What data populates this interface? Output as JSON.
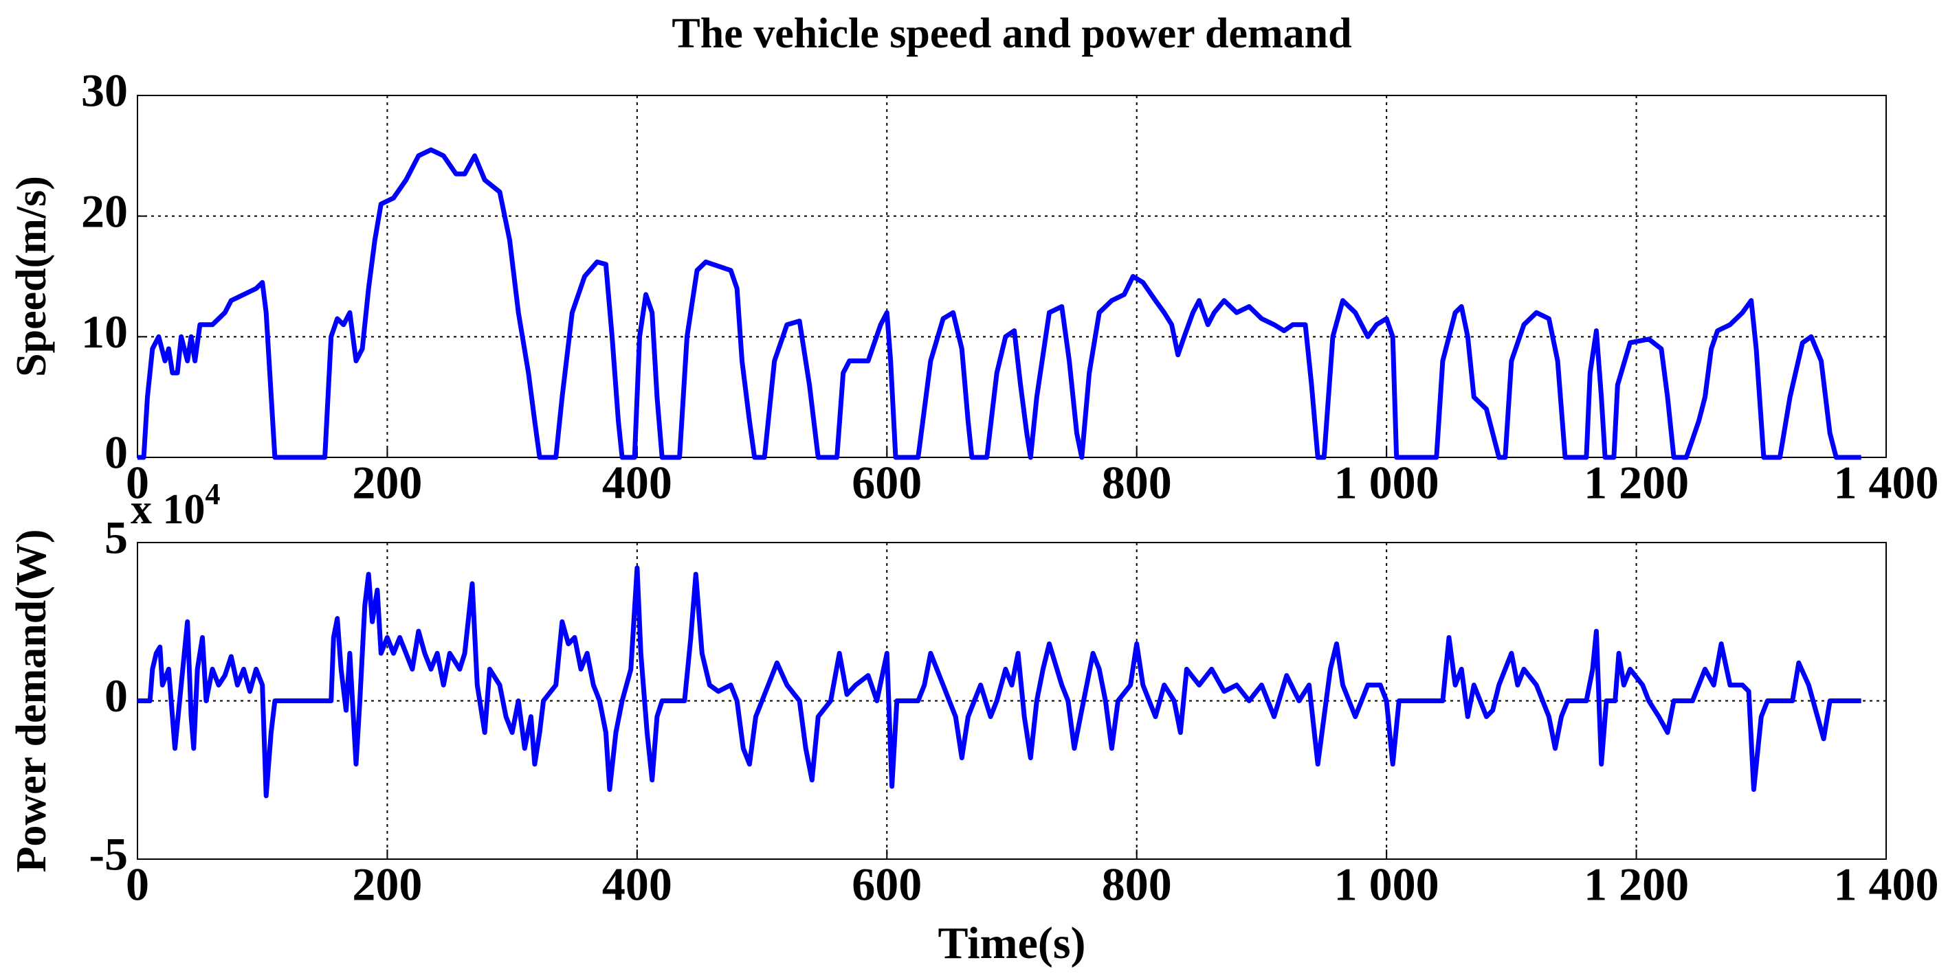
{
  "chart_data": [
    {
      "type": "line",
      "title": "The vehicle speed and power demand",
      "ylabel": "Speed(m/s)",
      "xlim": [
        0,
        1400
      ],
      "xticks": [
        0,
        200,
        400,
        600,
        800,
        {
          "value": 1000,
          "label": "1 000"
        },
        {
          "value": 1200,
          "label": "1 200"
        },
        {
          "value": 1400,
          "label": "1 400"
        }
      ],
      "ylim": [
        0,
        30
      ],
      "yticks": [
        0,
        10,
        20,
        30
      ],
      "grid": true,
      "x": [
        0,
        5,
        8,
        12,
        17,
        22,
        25,
        28,
        32,
        35,
        40,
        43,
        46,
        50,
        60,
        70,
        75,
        85,
        95,
        100,
        103,
        110,
        150,
        155,
        160,
        165,
        170,
        175,
        180,
        185,
        190,
        195,
        205,
        215,
        225,
        235,
        245,
        255,
        262,
        270,
        278,
        290,
        298,
        305,
        313,
        318,
        322,
        335,
        340,
        348,
        358,
        368,
        375,
        380,
        385,
        388,
        398,
        402,
        407,
        412,
        416,
        420,
        434,
        440,
        448,
        455,
        475,
        480,
        484,
        490,
        494,
        502,
        510,
        520,
        530,
        538,
        545,
        560,
        565,
        570,
        585,
        590,
        595,
        600,
        603,
        607,
        625,
        635,
        645,
        653,
        660,
        665,
        668,
        680,
        688,
        695,
        702,
        707,
        712,
        715,
        720,
        730,
        740,
        746,
        752,
        756,
        762,
        770,
        780,
        790,
        797,
        805,
        815,
        822,
        828,
        833,
        838,
        845,
        850,
        857,
        862,
        870,
        880,
        890,
        900,
        910,
        918,
        925,
        935,
        940,
        945,
        950,
        957,
        965,
        975,
        985,
        992,
        1000,
        1005,
        1008,
        1040,
        1045,
        1055,
        1060,
        1065,
        1070,
        1080,
        1090,
        1095,
        1100,
        1110,
        1120,
        1130,
        1137,
        1143,
        1160,
        1163,
        1168,
        1172,
        1175,
        1182,
        1185,
        1195,
        1210,
        1220,
        1225,
        1230,
        1240,
        1250,
        1255,
        1260,
        1265,
        1275,
        1285,
        1292,
        1296,
        1302,
        1315,
        1323,
        1333,
        1340,
        1348,
        1355,
        1360,
        1380
      ],
      "series": [
        {
          "color": "#0000ff",
          "values": [
            0,
            0,
            5,
            9,
            10,
            8,
            9,
            7,
            7,
            10,
            8,
            10,
            8,
            11,
            11,
            12,
            13,
            13.5,
            14,
            14.5,
            12,
            0,
            0,
            10,
            11.5,
            11,
            12,
            8,
            9,
            14,
            18,
            21,
            21.5,
            23,
            25,
            25.5,
            25,
            23.5,
            23.5,
            25,
            23,
            22,
            18,
            12,
            7,
            3,
            0,
            0,
            5,
            12,
            15,
            16.2,
            16,
            10,
            3,
            0,
            0,
            10,
            13.5,
            12,
            5,
            0,
            0,
            10,
            15.5,
            16.2,
            15.5,
            14,
            8,
            3,
            0,
            0,
            8,
            11,
            11.3,
            6,
            0,
            0,
            7,
            8,
            8,
            9.5,
            11,
            12,
            8,
            0,
            0,
            8,
            11.5,
            12,
            9,
            3,
            0,
            0,
            7,
            10,
            10.5,
            6,
            2,
            0,
            5,
            12,
            12.5,
            8,
            2,
            0,
            7,
            12,
            13,
            13.5,
            15,
            14.5,
            13,
            12,
            11,
            8.5,
            10,
            12,
            13,
            11,
            12,
            13,
            12,
            12.5,
            11.5,
            11,
            10.5,
            11,
            11,
            6,
            0,
            0,
            10,
            13,
            12,
            10,
            11,
            11.5,
            10,
            0,
            0,
            8,
            12,
            12.5,
            10,
            5,
            4,
            0,
            0,
            8,
            11,
            12,
            11.5,
            8,
            0,
            0,
            7,
            10.5,
            5,
            0,
            0,
            6,
            9.5,
            9.8,
            9,
            5,
            0,
            0,
            3,
            5,
            9,
            10.5,
            11,
            12,
            13,
            9,
            0,
            0,
            5,
            9.5,
            10,
            8,
            2,
            0,
            0
          ]
        }
      ]
    },
    {
      "type": "line",
      "ylabel": "Power demand(W)",
      "xlabel": "Time(s)",
      "y_offset_text": "x 10",
      "y_offset_exponent": "4",
      "xlim": [
        0,
        1400
      ],
      "xticks": [
        0,
        200,
        400,
        600,
        800,
        {
          "value": 1000,
          "label": "1 000"
        },
        {
          "value": 1200,
          "label": "1 200"
        },
        {
          "value": 1400,
          "label": "1 400"
        }
      ],
      "ylim": [
        -50000,
        50000
      ],
      "yticks": [
        {
          "value": -50000,
          "label": "-5"
        },
        0,
        {
          "value": 50000,
          "label": "5"
        }
      ],
      "grid": true,
      "x": [
        0,
        10,
        12,
        15,
        18,
        20,
        25,
        30,
        35,
        40,
        43,
        45,
        48,
        52,
        55,
        60,
        65,
        70,
        75,
        80,
        85,
        90,
        95,
        100,
        103,
        107,
        110,
        155,
        157,
        160,
        163,
        167,
        170,
        175,
        178,
        182,
        185,
        188,
        192,
        195,
        200,
        205,
        210,
        215,
        220,
        225,
        230,
        235,
        240,
        245,
        250,
        258,
        262,
        268,
        272,
        278,
        282,
        290,
        295,
        300,
        305,
        310,
        315,
        318,
        322,
        325,
        335,
        340,
        345,
        350,
        355,
        360,
        365,
        370,
        375,
        378,
        383,
        388,
        395,
        400,
        403,
        408,
        412,
        416,
        420,
        438,
        443,
        447,
        452,
        458,
        465,
        475,
        480,
        485,
        490,
        495,
        505,
        512,
        520,
        530,
        535,
        540,
        545,
        555,
        562,
        568,
        575,
        585,
        592,
        600,
        604,
        608,
        625,
        630,
        635,
        645,
        650,
        655,
        660,
        665,
        675,
        683,
        688,
        695,
        700,
        705,
        710,
        715,
        720,
        725,
        730,
        740,
        745,
        750,
        755,
        760,
        765,
        770,
        775,
        780,
        785,
        795,
        800,
        805,
        815,
        822,
        830,
        835,
        840,
        850,
        860,
        870,
        880,
        890,
        900,
        910,
        920,
        930,
        938,
        945,
        950,
        955,
        960,
        965,
        975,
        985,
        995,
        1000,
        1005,
        1010,
        1045,
        1050,
        1055,
        1060,
        1065,
        1070,
        1080,
        1085,
        1090,
        1100,
        1105,
        1110,
        1120,
        1130,
        1135,
        1140,
        1145,
        1160,
        1165,
        1168,
        1172,
        1176,
        1183,
        1186,
        1190,
        1195,
        1205,
        1210,
        1218,
        1225,
        1230,
        1245,
        1250,
        1255,
        1262,
        1268,
        1275,
        1285,
        1290,
        1294,
        1300,
        1305,
        1325,
        1330,
        1338,
        1345,
        1350,
        1355,
        1380
      ],
      "series": [
        {
          "color": "#0000ff",
          "values": [
            0,
            0,
            10000,
            15000,
            17000,
            5000,
            10000,
            -15000,
            5000,
            25000,
            -5000,
            -15000,
            10000,
            20000,
            0,
            10000,
            5000,
            8000,
            14000,
            5000,
            10000,
            3000,
            10000,
            5000,
            -30000,
            -10000,
            0,
            0,
            20000,
            26000,
            10000,
            -3000,
            15000,
            -20000,
            0,
            30000,
            40000,
            25000,
            35000,
            15000,
            20000,
            15000,
            20000,
            15000,
            10000,
            22000,
            15000,
            10000,
            15000,
            5000,
            15000,
            10000,
            15000,
            37000,
            5000,
            -10000,
            10000,
            5000,
            -5000,
            -10000,
            0,
            -15000,
            -5000,
            -20000,
            -10000,
            0,
            5000,
            25000,
            18000,
            20000,
            10000,
            15000,
            5000,
            0,
            -10000,
            -28000,
            -10000,
            0,
            10000,
            42000,
            15000,
            -10000,
            -25000,
            -5000,
            0,
            0,
            20000,
            40000,
            15000,
            5000,
            3000,
            5000,
            0,
            -15000,
            -20000,
            -5000,
            5000,
            12000,
            5000,
            0,
            -15000,
            -25000,
            -5000,
            0,
            15000,
            2000,
            5000,
            8000,
            0,
            15000,
            -27000,
            0,
            0,
            5000,
            15000,
            5000,
            0,
            -5000,
            -18000,
            -5000,
            5000,
            -5000,
            0,
            10000,
            5000,
            15000,
            -5000,
            -18000,
            0,
            10000,
            18000,
            5000,
            0,
            -15000,
            -5000,
            5000,
            15000,
            10000,
            0,
            -15000,
            0,
            5000,
            18000,
            5000,
            -5000,
            5000,
            0,
            -10000,
            10000,
            5000,
            10000,
            3000,
            5000,
            0,
            5000,
            -5000,
            8000,
            0,
            5000,
            -20000,
            -5000,
            10000,
            18000,
            5000,
            -5000,
            5000,
            5000,
            0,
            -20000,
            0,
            0,
            20000,
            5000,
            10000,
            -5000,
            5000,
            -5000,
            -3000,
            5000,
            15000,
            5000,
            10000,
            5000,
            -5000,
            -15000,
            -5000,
            0,
            0,
            10000,
            22000,
            -20000,
            0,
            0,
            15000,
            5000,
            10000,
            5000,
            0,
            -5000,
            -10000,
            0,
            0,
            5000,
            10000,
            5000,
            18000,
            5000,
            5000,
            3000,
            -28000,
            -5000,
            0,
            0,
            12000,
            5000,
            -5000,
            -12000,
            0,
            0
          ]
        }
      ]
    }
  ]
}
